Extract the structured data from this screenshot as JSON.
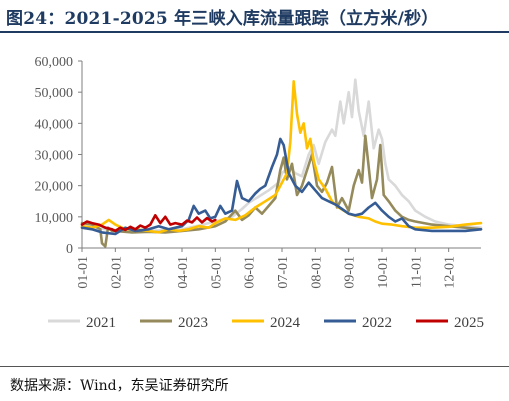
{
  "figure": {
    "title": "图24：2021-2025 年三峡入库流量跟踪（立方米/秒）",
    "source": "数据来源：Wind，东吴证券研究所"
  },
  "chart_data": {
    "type": "line",
    "title": "图24：2021-2025 年三峡入库流量跟踪（立方米/秒）",
    "xlabel": "",
    "ylabel": "",
    "xlim": [
      1,
      12.97
    ],
    "ylim": [
      0,
      60000
    ],
    "yticks": [
      0,
      10000,
      20000,
      30000,
      40000,
      50000,
      60000
    ],
    "ytick_labels": [
      "0",
      "10,000",
      "20,000",
      "30,000",
      "40,000",
      "50,000",
      "60,000"
    ],
    "xticks": [
      1,
      2,
      3,
      4,
      5,
      6,
      7,
      8,
      9,
      10,
      11,
      12
    ],
    "xtick_labels": [
      "01-01",
      "02-01",
      "03-01",
      "04-01",
      "05-01",
      "06-01",
      "07-01",
      "08-01",
      "09-01",
      "10-01",
      "11-01",
      "12-01"
    ],
    "grid": false,
    "legend_position": "bottom",
    "series": [
      {
        "name": "2021",
        "color": "#d9d9d9",
        "points": [
          [
            1.0,
            6500
          ],
          [
            1.5,
            6200
          ],
          [
            2.0,
            5800
          ],
          [
            2.5,
            5600
          ],
          [
            3.0,
            5500
          ],
          [
            3.5,
            5700
          ],
          [
            4.0,
            6000
          ],
          [
            4.5,
            7200
          ],
          [
            5.0,
            8500
          ],
          [
            5.5,
            10000
          ],
          [
            5.8,
            12500
          ],
          [
            6.0,
            14500
          ],
          [
            6.3,
            16500
          ],
          [
            6.6,
            18500
          ],
          [
            6.9,
            21000
          ],
          [
            7.0,
            24000
          ],
          [
            7.2,
            26000
          ],
          [
            7.4,
            24000
          ],
          [
            7.6,
            23000
          ],
          [
            7.8,
            30000
          ],
          [
            7.95,
            33000
          ],
          [
            8.1,
            27000
          ],
          [
            8.3,
            34000
          ],
          [
            8.5,
            38000
          ],
          [
            8.6,
            36000
          ],
          [
            8.75,
            47000
          ],
          [
            8.85,
            40000
          ],
          [
            9.0,
            50000
          ],
          [
            9.1,
            42000
          ],
          [
            9.2,
            54000
          ],
          [
            9.3,
            44000
          ],
          [
            9.45,
            36000
          ],
          [
            9.6,
            47000
          ],
          [
            9.75,
            32000
          ],
          [
            9.9,
            38000
          ],
          [
            10.0,
            35000
          ],
          [
            10.1,
            27000
          ],
          [
            10.2,
            22000
          ],
          [
            10.4,
            20000
          ],
          [
            10.6,
            17000
          ],
          [
            10.8,
            15000
          ],
          [
            11.0,
            12000
          ],
          [
            11.3,
            10000
          ],
          [
            11.6,
            8500
          ],
          [
            12.0,
            7500
          ],
          [
            12.5,
            7000
          ],
          [
            12.97,
            6500
          ]
        ]
      },
      {
        "name": "2023",
        "color": "#958a5b",
        "points": [
          [
            1.0,
            8000
          ],
          [
            1.3,
            7500
          ],
          [
            1.55,
            6000
          ],
          [
            1.6,
            1500
          ],
          [
            1.7,
            500
          ],
          [
            1.78,
            6500
          ],
          [
            1.9,
            5500
          ],
          [
            2.0,
            5500
          ],
          [
            2.5,
            5000
          ],
          [
            3.0,
            5200
          ],
          [
            3.5,
            5000
          ],
          [
            4.0,
            5500
          ],
          [
            4.5,
            6000
          ],
          [
            5.0,
            7000
          ],
          [
            5.3,
            8500
          ],
          [
            5.6,
            12000
          ],
          [
            5.8,
            9000
          ],
          [
            6.0,
            10500
          ],
          [
            6.2,
            13000
          ],
          [
            6.4,
            11000
          ],
          [
            6.6,
            13500
          ],
          [
            6.8,
            16000
          ],
          [
            6.95,
            25000
          ],
          [
            7.05,
            29000
          ],
          [
            7.15,
            22000
          ],
          [
            7.3,
            27000
          ],
          [
            7.45,
            17000
          ],
          [
            7.6,
            20000
          ],
          [
            7.75,
            25000
          ],
          [
            7.9,
            30000
          ],
          [
            8.05,
            20000
          ],
          [
            8.2,
            18000
          ],
          [
            8.35,
            21000
          ],
          [
            8.5,
            26000
          ],
          [
            8.65,
            13000
          ],
          [
            8.8,
            16000
          ],
          [
            9.0,
            12000
          ],
          [
            9.15,
            20000
          ],
          [
            9.3,
            25000
          ],
          [
            9.4,
            21000
          ],
          [
            9.5,
            36000
          ],
          [
            9.6,
            26000
          ],
          [
            9.7,
            16000
          ],
          [
            9.85,
            22000
          ],
          [
            9.95,
            33000
          ],
          [
            10.05,
            17000
          ],
          [
            10.2,
            15000
          ],
          [
            10.4,
            12000
          ],
          [
            10.6,
            10000
          ],
          [
            10.8,
            9000
          ],
          [
            11.0,
            8500
          ],
          [
            11.5,
            7500
          ],
          [
            12.0,
            7000
          ],
          [
            12.5,
            6500
          ],
          [
            12.97,
            6000
          ]
        ]
      },
      {
        "name": "2024",
        "color": "#ffc000",
        "points": [
          [
            1.0,
            7000
          ],
          [
            1.3,
            6500
          ],
          [
            1.6,
            7500
          ],
          [
            1.8,
            9000
          ],
          [
            2.0,
            7500
          ],
          [
            2.3,
            6000
          ],
          [
            2.6,
            6000
          ],
          [
            3.0,
            5500
          ],
          [
            3.3,
            5000
          ],
          [
            3.6,
            6000
          ],
          [
            3.9,
            5500
          ],
          [
            4.2,
            6000
          ],
          [
            4.5,
            7000
          ],
          [
            4.8,
            6500
          ],
          [
            5.0,
            8000
          ],
          [
            5.3,
            9500
          ],
          [
            5.6,
            9000
          ],
          [
            5.9,
            10500
          ],
          [
            6.2,
            13000
          ],
          [
            6.5,
            15000
          ],
          [
            6.8,
            17000
          ],
          [
            7.0,
            21000
          ],
          [
            7.15,
            24000
          ],
          [
            7.25,
            34000
          ],
          [
            7.35,
            53500
          ],
          [
            7.45,
            43000
          ],
          [
            7.55,
            37000
          ],
          [
            7.65,
            40000
          ],
          [
            7.75,
            32000
          ],
          [
            7.85,
            35000
          ],
          [
            7.95,
            28000
          ],
          [
            8.1,
            22000
          ],
          [
            8.3,
            19000
          ],
          [
            8.5,
            15000
          ],
          [
            8.7,
            13000
          ],
          [
            9.0,
            11000
          ],
          [
            9.3,
            10000
          ],
          [
            9.6,
            9500
          ],
          [
            9.8,
            8500
          ],
          [
            10.0,
            7800
          ],
          [
            10.3,
            7500
          ],
          [
            10.6,
            7000
          ],
          [
            11.0,
            6500
          ],
          [
            11.5,
            6500
          ],
          [
            12.0,
            6800
          ],
          [
            12.5,
            7500
          ],
          [
            12.97,
            8000
          ]
        ]
      },
      {
        "name": "2022",
        "color": "#355c94",
        "points": [
          [
            1.0,
            6500
          ],
          [
            1.3,
            6000
          ],
          [
            1.6,
            5000
          ],
          [
            2.0,
            4500
          ],
          [
            2.3,
            6500
          ],
          [
            2.6,
            5500
          ],
          [
            3.0,
            6000
          ],
          [
            3.3,
            7000
          ],
          [
            3.6,
            6000
          ],
          [
            4.0,
            7000
          ],
          [
            4.2,
            9000
          ],
          [
            4.35,
            13500
          ],
          [
            4.5,
            11000
          ],
          [
            4.7,
            12000
          ],
          [
            4.85,
            9500
          ],
          [
            5.0,
            10000
          ],
          [
            5.15,
            13500
          ],
          [
            5.3,
            11000
          ],
          [
            5.5,
            12000
          ],
          [
            5.65,
            21500
          ],
          [
            5.8,
            16000
          ],
          [
            6.0,
            15000
          ],
          [
            6.2,
            17500
          ],
          [
            6.35,
            19000
          ],
          [
            6.5,
            20000
          ],
          [
            6.7,
            26000
          ],
          [
            6.85,
            30000
          ],
          [
            6.95,
            35000
          ],
          [
            7.05,
            33000
          ],
          [
            7.2,
            24000
          ],
          [
            7.4,
            20000
          ],
          [
            7.6,
            18000
          ],
          [
            7.8,
            21000
          ],
          [
            8.0,
            18500
          ],
          [
            8.2,
            16000
          ],
          [
            8.4,
            15000
          ],
          [
            8.6,
            14000
          ],
          [
            8.8,
            12500
          ],
          [
            9.0,
            11000
          ],
          [
            9.2,
            10500
          ],
          [
            9.4,
            11000
          ],
          [
            9.6,
            13000
          ],
          [
            9.8,
            14500
          ],
          [
            10.0,
            12000
          ],
          [
            10.2,
            10000
          ],
          [
            10.4,
            8500
          ],
          [
            10.6,
            9500
          ],
          [
            10.8,
            7000
          ],
          [
            11.0,
            6000
          ],
          [
            11.5,
            5500
          ],
          [
            12.0,
            5500
          ],
          [
            12.5,
            5500
          ],
          [
            12.97,
            6000
          ]
        ]
      },
      {
        "name": "2025",
        "color": "#c00000",
        "points": [
          [
            1.0,
            7500
          ],
          [
            1.15,
            8500
          ],
          [
            1.3,
            8000
          ],
          [
            1.5,
            7500
          ],
          [
            1.7,
            6500
          ],
          [
            1.9,
            6000
          ],
          [
            2.0,
            5500
          ],
          [
            2.15,
            6500
          ],
          [
            2.3,
            5800
          ],
          [
            2.45,
            6800
          ],
          [
            2.6,
            6000
          ],
          [
            2.75,
            7200
          ],
          [
            2.9,
            6500
          ],
          [
            3.05,
            7500
          ],
          [
            3.2,
            10500
          ],
          [
            3.35,
            8000
          ],
          [
            3.5,
            10000
          ],
          [
            3.65,
            7500
          ],
          [
            3.8,
            8000
          ],
          [
            4.0,
            7500
          ],
          [
            4.15,
            8800
          ],
          [
            4.3,
            8200
          ],
          [
            4.45,
            9800
          ],
          [
            4.6,
            8200
          ],
          [
            4.75,
            9600
          ],
          [
            4.9,
            8500
          ],
          [
            5.0,
            9000
          ]
        ]
      }
    ]
  }
}
